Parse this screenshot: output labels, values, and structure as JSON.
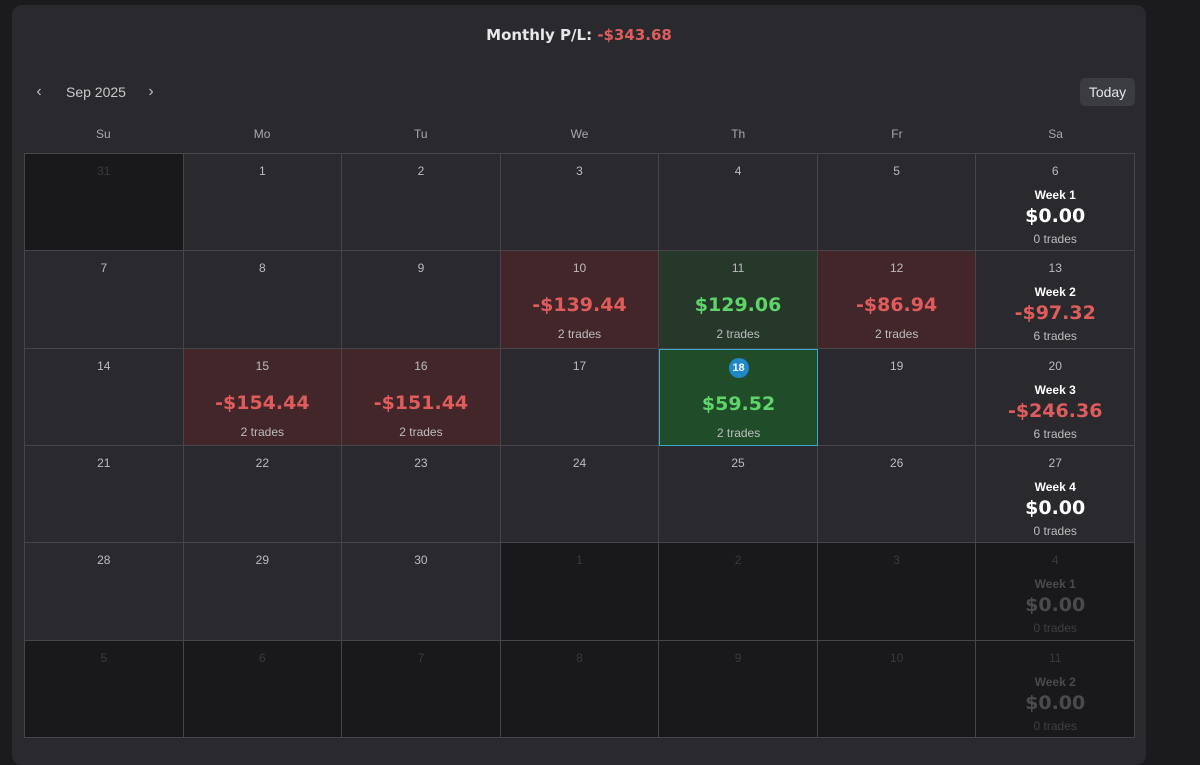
{
  "header": {
    "label": "Monthly P/L:",
    "value": "-$343.68"
  },
  "nav": {
    "prev": "‹",
    "next": "›",
    "month": "Sep 2025",
    "today": "Today"
  },
  "weekdays": [
    "Su",
    "Mo",
    "Tu",
    "We",
    "Th",
    "Fr",
    "Sa"
  ],
  "weeks": [
    [
      {
        "day": "31",
        "state": "out"
      },
      {
        "day": "1"
      },
      {
        "day": "2"
      },
      {
        "day": "3"
      },
      {
        "day": "4"
      },
      {
        "day": "5"
      },
      {
        "day": "6",
        "summary": {
          "label": "Week 1",
          "pl": "$0.00",
          "trades": "0 trades"
        }
      }
    ],
    [
      {
        "day": "7"
      },
      {
        "day": "8"
      },
      {
        "day": "9"
      },
      {
        "day": "10",
        "state": "loss",
        "pl": "-$139.44",
        "trades": "2 trades"
      },
      {
        "day": "11",
        "state": "win",
        "pl": "$129.06",
        "trades": "2 trades"
      },
      {
        "day": "12",
        "state": "loss",
        "pl": "-$86.94",
        "trades": "2 trades"
      },
      {
        "day": "13",
        "summary": {
          "label": "Week 2",
          "pl": "-$97.32",
          "trades": "6 trades",
          "neg": true
        }
      }
    ],
    [
      {
        "day": "14"
      },
      {
        "day": "15",
        "state": "loss",
        "pl": "-$154.44",
        "trades": "2 trades"
      },
      {
        "day": "16",
        "state": "loss",
        "pl": "-$151.44",
        "trades": "2 trades"
      },
      {
        "day": "17"
      },
      {
        "day": "18",
        "state": "selected",
        "today": true,
        "pl": "$59.52",
        "trades": "2 trades"
      },
      {
        "day": "19"
      },
      {
        "day": "20",
        "summary": {
          "label": "Week 3",
          "pl": "-$246.36",
          "trades": "6 trades",
          "neg": true
        }
      }
    ],
    [
      {
        "day": "21"
      },
      {
        "day": "22"
      },
      {
        "day": "23"
      },
      {
        "day": "24"
      },
      {
        "day": "25"
      },
      {
        "day": "26"
      },
      {
        "day": "27",
        "summary": {
          "label": "Week 4",
          "pl": "$0.00",
          "trades": "0 trades"
        }
      }
    ],
    [
      {
        "day": "28"
      },
      {
        "day": "29"
      },
      {
        "day": "30"
      },
      {
        "day": "1",
        "state": "out"
      },
      {
        "day": "2",
        "state": "out"
      },
      {
        "day": "3",
        "state": "out"
      },
      {
        "day": "4",
        "state": "out",
        "summary": {
          "label": "Week 1",
          "pl": "$0.00",
          "trades": "0 trades"
        }
      }
    ],
    [
      {
        "day": "5",
        "state": "out"
      },
      {
        "day": "6",
        "state": "out"
      },
      {
        "day": "7",
        "state": "out"
      },
      {
        "day": "8",
        "state": "out"
      },
      {
        "day": "9",
        "state": "out"
      },
      {
        "day": "10",
        "state": "out"
      },
      {
        "day": "11",
        "state": "out",
        "summary": {
          "label": "Week 2",
          "pl": "$0.00",
          "trades": "0 trades"
        }
      }
    ]
  ],
  "colors": {
    "negative": "#e05c5c",
    "positive": "#5fd468",
    "today_badge": "#1e88c8",
    "selected_border": "#3aa9c9"
  }
}
